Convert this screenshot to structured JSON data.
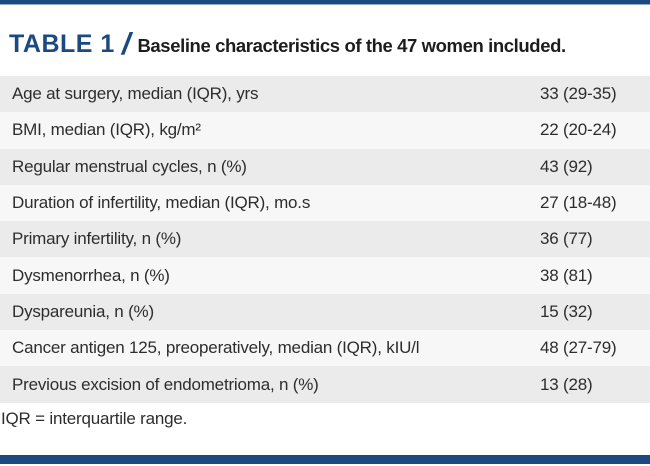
{
  "colors": {
    "accent": "#1b4a80",
    "row_odd": "#ebebeb",
    "row_even": "#f7f7f7",
    "text": "#2d2d2d"
  },
  "header": {
    "label": "TABLE 1",
    "separator": "/",
    "title": "Baseline characteristics of the 47 women included."
  },
  "table": {
    "rows": [
      {
        "label": "Age at surgery, median (IQR), yrs",
        "value": "33 (29-35)"
      },
      {
        "label": "BMI, median (IQR), kg/m²",
        "value": "22 (20-24)"
      },
      {
        "label": "Regular menstrual cycles, n (%)",
        "value": "43 (92)"
      },
      {
        "label": "Duration of infertility, median (IQR), mo.s",
        "value": "27 (18-48)"
      },
      {
        "label": "Primary infertility, n (%)",
        "value": "36 (77)"
      },
      {
        "label": "Dysmenorrhea, n (%)",
        "value": "38 (81)"
      },
      {
        "label": "Dyspareunia, n (%)",
        "value": "15 (32)"
      },
      {
        "label": "Cancer antigen 125, preoperatively, median (IQR), kIU/l",
        "value": "48 (27-79)"
      },
      {
        "label": "Previous excision of endometrioma, n (%)",
        "value": "13 (28)"
      }
    ]
  },
  "footnote": "IQR = interquartile range."
}
